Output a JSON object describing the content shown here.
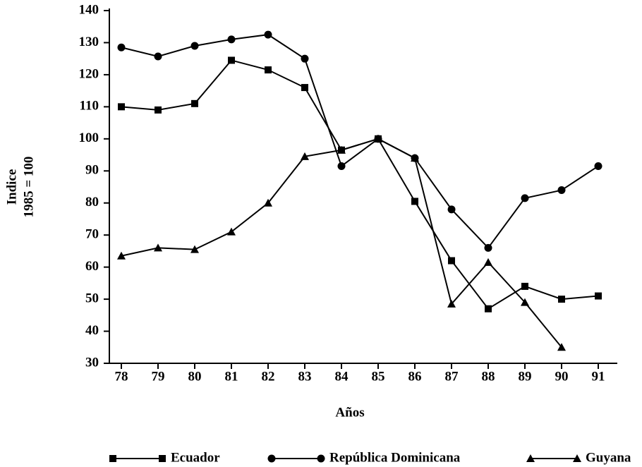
{
  "chart_data": {
    "type": "line",
    "xlabel": "Años",
    "ylabel": [
      "Indice",
      "1985 = 100"
    ],
    "categories": [
      "78",
      "79",
      "80",
      "81",
      "82",
      "83",
      "84",
      "85",
      "86",
      "87",
      "88",
      "89",
      "90",
      "91"
    ],
    "ylim": [
      30,
      140
    ],
    "yticks": [
      30,
      40,
      50,
      60,
      70,
      80,
      90,
      100,
      110,
      120,
      130,
      140
    ],
    "grid": false,
    "legend": "bottom",
    "series": [
      {
        "name": "Ecuador",
        "color": "#000000",
        "marker": "square",
        "values": [
          110,
          109,
          111,
          124.5,
          121.5,
          116,
          96.5,
          100,
          80.5,
          62,
          47,
          54,
          50,
          51
        ]
      },
      {
        "name": "República Dominicana",
        "color": "#000000",
        "marker": "circle",
        "values": [
          128.5,
          125.7,
          129,
          131,
          132.5,
          125,
          91.5,
          100,
          94,
          78,
          66,
          81.5,
          84,
          91.5
        ]
      },
      {
        "name": "Guyana",
        "color": "#000000",
        "marker": "triangle",
        "values": [
          63.5,
          66,
          65.5,
          71,
          80,
          94.5,
          96.5,
          100,
          94,
          48.5,
          61.5,
          49,
          35,
          null
        ]
      }
    ]
  }
}
